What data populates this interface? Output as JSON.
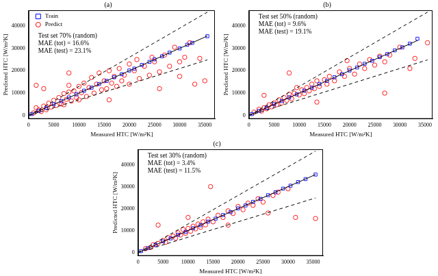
{
  "chart_data": [
    {
      "type": "scatter",
      "title": "(a)",
      "x_label": "Measured HTC [W/m²K]",
      "y_label": "Predicted HTC [W/m²K]",
      "xlim": [
        0,
        37000
      ],
      "ylim": [
        -1500,
        47000
      ],
      "xticks": [
        0,
        5000,
        10000,
        15000,
        20000,
        25000,
        30000,
        35000
      ],
      "yticks": [
        0,
        10000,
        20000,
        30000,
        40000
      ],
      "grid": false,
      "legend": "upper left",
      "annotations": [
        "Test set 70% (random)",
        "MAE (tot) = 16.6%",
        "MAE (test) = 23.1%"
      ],
      "series": [
        {
          "name": "Train",
          "type": "scatter",
          "color": "#0000ff",
          "marker": "square",
          "x": [
            600,
            2000,
            3500,
            5000,
            6500,
            8000,
            9500,
            11000,
            12500,
            14000,
            15500,
            17000,
            18500,
            20000,
            21000,
            22500,
            24000,
            25000,
            26500,
            28000,
            30000,
            31500,
            32500,
            35500
          ],
          "values": [
            650,
            2050,
            3450,
            5100,
            6450,
            8100,
            9450,
            11100,
            12450,
            14100,
            15450,
            17100,
            18450,
            20100,
            20950,
            22600,
            23950,
            25100,
            26450,
            28100,
            29950,
            31600,
            32450,
            35400
          ]
        },
        {
          "name": "Predict",
          "type": "scatter",
          "color": "#ff0000",
          "marker": "circle",
          "x": [
            1000,
            1500,
            2000,
            2500,
            3000,
            3500,
            4000,
            4500,
            5000,
            5500,
            6000,
            6500,
            7000,
            7000,
            7500,
            8000,
            8000,
            8500,
            9000,
            9500,
            10000,
            10000,
            10500,
            11000,
            11500,
            12000,
            12500,
            13000,
            13500,
            14000,
            14500,
            15000,
            15500,
            16000,
            16500,
            17000,
            17500,
            18000,
            18500,
            19000,
            20000,
            20000,
            21000,
            21500,
            22000,
            23000,
            24000,
            24500,
            25000,
            26000,
            27000,
            28000,
            29000,
            30000,
            30000,
            31000,
            32000,
            33000,
            34000,
            35000,
            1500,
            3000,
            8000,
            16000,
            26000
          ],
          "values": [
            1200,
            3500,
            2500,
            1800,
            4200,
            2600,
            5500,
            3800,
            6800,
            4500,
            8000,
            5200,
            9800,
            4800,
            7200,
            10500,
            13500,
            6500,
            11000,
            8000,
            13000,
            7000,
            10200,
            14500,
            8500,
            12500,
            17000,
            10000,
            14000,
            19000,
            11500,
            15500,
            12000,
            20000,
            14500,
            17500,
            13000,
            21000,
            15500,
            18000,
            23000,
            14000,
            20000,
            25000,
            16500,
            22000,
            18000,
            26000,
            24000,
            19500,
            27000,
            22000,
            30500,
            17500,
            24000,
            26000,
            32500,
            14000,
            25500,
            15500,
            13500,
            12000,
            19000,
            7000,
            12000
          ]
        },
        {
          "type": "line",
          "color": "#000000",
          "line_style": "solid",
          "x": [
            500,
            35500
          ],
          "values": [
            500,
            35500
          ]
        },
        {
          "type": "line",
          "color": "#000000",
          "line_style": "dashed",
          "x": [
            0,
            35500
          ],
          "values": [
            0,
            46150
          ]
        },
        {
          "type": "line",
          "color": "#000000",
          "line_style": "dashed",
          "x": [
            0,
            35500
          ],
          "values": [
            0,
            24850
          ]
        }
      ]
    },
    {
      "type": "scatter",
      "title": "(b)",
      "x_label": "Measured HTC [W/m²K]",
      "y_label": "Predicted HTC [W/m²K]",
      "xlim": [
        0,
        36500
      ],
      "ylim": [
        -1500,
        47000
      ],
      "xticks": [
        0,
        5000,
        10000,
        15000,
        20000,
        25000,
        30000,
        35000
      ],
      "yticks": [
        0,
        10000,
        20000,
        30000,
        40000
      ],
      "grid": false,
      "annotations": [
        "Test set 50% (random)",
        "MAE (tot) = 9.6%",
        "MAE (test) = 19.1%"
      ],
      "series": [
        {
          "type": "scatter",
          "color": "#0000ff",
          "marker": "square",
          "x": [
            600,
            2000,
            3500,
            5000,
            6500,
            8000,
            9500,
            11000,
            12500,
            14000,
            15500,
            17000,
            18500,
            20000,
            21500,
            23000,
            24500,
            26000,
            27500,
            29000,
            30500,
            32000,
            33500
          ],
          "values": [
            650,
            2050,
            3450,
            5100,
            6450,
            8100,
            9450,
            11100,
            12450,
            14100,
            15450,
            17100,
            18450,
            20100,
            21450,
            23100,
            24450,
            26100,
            27450,
            29100,
            30450,
            32100,
            34300
          ]
        },
        {
          "type": "scatter",
          "color": "#ff0000",
          "marker": "circle",
          "x": [
            1000,
            2000,
            2500,
            3000,
            3500,
            4000,
            4500,
            5000,
            5500,
            6000,
            6500,
            7000,
            7500,
            8000,
            8500,
            9000,
            9500,
            10000,
            10500,
            11000,
            11500,
            12000,
            12500,
            13000,
            13500,
            14000,
            15000,
            15500,
            16000,
            17000,
            18000,
            19000,
            20000,
            21000,
            22000,
            23000,
            24000,
            25000,
            26000,
            27000,
            28000,
            30000,
            32000,
            33000,
            35500,
            8000,
            13500,
            3000,
            27000,
            19500
          ],
          "values": [
            1500,
            2800,
            2000,
            3500,
            3000,
            4800,
            3900,
            5600,
            4800,
            7000,
            5600,
            8000,
            6800,
            9500,
            7500,
            10000,
            12500,
            9200,
            11500,
            9800,
            12500,
            11000,
            14000,
            12000,
            15500,
            13000,
            16000,
            14000,
            17500,
            15500,
            19500,
            17500,
            21000,
            18500,
            23000,
            21000,
            25000,
            22500,
            26500,
            24000,
            27000,
            30500,
            21000,
            25500,
            32500,
            19000,
            6000,
            9000,
            10000,
            24500
          ]
        },
        {
          "type": "line",
          "color": "#000000",
          "line_style": "solid",
          "x": [
            500,
            33500
          ],
          "values": [
            500,
            33500
          ]
        },
        {
          "type": "line",
          "color": "#000000",
          "line_style": "dashed",
          "x": [
            0,
            35500
          ],
          "values": [
            0,
            46150
          ]
        },
        {
          "type": "line",
          "color": "#000000",
          "line_style": "dashed",
          "x": [
            0,
            35500
          ],
          "values": [
            0,
            24850
          ]
        }
      ]
    },
    {
      "type": "scatter",
      "title": "(c)",
      "x_label": "Measured HTC [W/m²K]",
      "y_label": "Predicted HTC [W/m²K]",
      "xlim": [
        0,
        37000
      ],
      "ylim": [
        -1500,
        47000
      ],
      "xticks": [
        0,
        5000,
        10000,
        15000,
        20000,
        25000,
        30000,
        35000
      ],
      "yticks": [
        0,
        10000,
        20000,
        30000,
        40000
      ],
      "grid": false,
      "annotations": [
        "Test set 30% (random)",
        "MAE (tot) = 3.4%",
        "MAE (test) = 11.5%"
      ],
      "series": [
        {
          "type": "scatter",
          "color": "#0000ff",
          "marker": "square",
          "x": [
            600,
            2000,
            3500,
            5000,
            6500,
            8000,
            9500,
            11000,
            12500,
            14000,
            15500,
            17000,
            18500,
            20000,
            21500,
            23000,
            24500,
            26000,
            27500,
            29000,
            30500,
            32000,
            33500,
            35500
          ],
          "values": [
            650,
            2050,
            3450,
            5100,
            6450,
            8100,
            9450,
            11100,
            12450,
            14100,
            15450,
            17100,
            18450,
            20100,
            21450,
            23100,
            24450,
            26100,
            27450,
            29100,
            30450,
            32100,
            33450,
            35500
          ]
        },
        {
          "type": "scatter",
          "color": "#ff0000",
          "marker": "circle",
          "x": [
            1500,
            2500,
            3000,
            4000,
            5000,
            5500,
            6000,
            7000,
            7500,
            8000,
            8500,
            9000,
            9500,
            10000,
            10500,
            11000,
            11500,
            12000,
            12500,
            13000,
            13500,
            14000,
            14500,
            15000,
            16000,
            17000,
            18000,
            19000,
            20000,
            21000,
            22000,
            23000,
            24000,
            25000,
            26000,
            27000,
            28000,
            30000,
            31500,
            35500,
            4000,
            10000,
            18000
          ],
          "values": [
            1800,
            2300,
            3500,
            4200,
            5500,
            4700,
            6800,
            7500,
            6500,
            9000,
            8000,
            10500,
            8800,
            11000,
            9700,
            12000,
            10800,
            13000,
            11500,
            14000,
            12600,
            15200,
            30000,
            14000,
            17000,
            16000,
            19000,
            17800,
            21000,
            19500,
            22500,
            21500,
            24500,
            23000,
            18000,
            26000,
            27500,
            29000,
            16000,
            15500,
            12500,
            16000,
            12500
          ]
        },
        {
          "type": "line",
          "color": "#000000",
          "line_style": "solid",
          "x": [
            500,
            35500
          ],
          "values": [
            500,
            35500
          ]
        },
        {
          "type": "line",
          "color": "#000000",
          "line_style": "dashed",
          "x": [
            0,
            35500
          ],
          "values": [
            0,
            46150
          ]
        },
        {
          "type": "line",
          "color": "#000000",
          "line_style": "dashed",
          "x": [
            0,
            35500
          ],
          "values": [
            0,
            24850
          ]
        }
      ]
    }
  ]
}
